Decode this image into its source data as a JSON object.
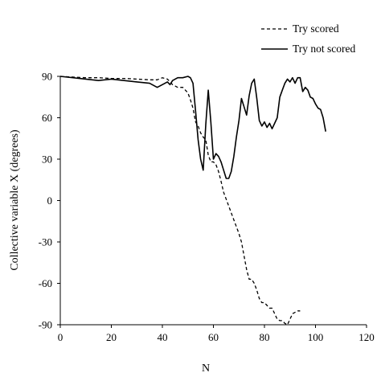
{
  "chart_data": {
    "type": "line",
    "title": "",
    "xlabel": "N",
    "ylabel": "Collective variable X (degrees)",
    "xlim": [
      0,
      120
    ],
    "ylim": [
      -90,
      90
    ],
    "xticks": [
      0,
      20,
      40,
      60,
      80,
      100,
      120
    ],
    "yticks": [
      -90,
      -60,
      -30,
      0,
      30,
      60,
      90
    ],
    "grid": false,
    "legend_position": "top-right",
    "series": [
      {
        "name": "Try scored",
        "style": "dashed",
        "color": "#000000",
        "points": [
          [
            0,
            90
          ],
          [
            5,
            89.5
          ],
          [
            10,
            89
          ],
          [
            15,
            89
          ],
          [
            20,
            88.5
          ],
          [
            25,
            88.5
          ],
          [
            30,
            88
          ],
          [
            35,
            87.5
          ],
          [
            38,
            87.5
          ],
          [
            40,
            89
          ],
          [
            42,
            88
          ],
          [
            44,
            84
          ],
          [
            46,
            82
          ],
          [
            48,
            82
          ],
          [
            50,
            78
          ],
          [
            51,
            73
          ],
          [
            52,
            67
          ],
          [
            53,
            57
          ],
          [
            54,
            54
          ],
          [
            55,
            49
          ],
          [
            56,
            46
          ],
          [
            57,
            44
          ],
          [
            58,
            33
          ],
          [
            59,
            28
          ],
          [
            60,
            28
          ],
          [
            61,
            26
          ],
          [
            62,
            21
          ],
          [
            63,
            14
          ],
          [
            64,
            6
          ],
          [
            65,
            1
          ],
          [
            66,
            -4
          ],
          [
            67,
            -9
          ],
          [
            68,
            -14
          ],
          [
            69,
            -19
          ],
          [
            70,
            -24
          ],
          [
            71,
            -30
          ],
          [
            72,
            -40
          ],
          [
            73,
            -50
          ],
          [
            74,
            -57
          ],
          [
            75,
            -57
          ],
          [
            76,
            -60
          ],
          [
            77,
            -65
          ],
          [
            78,
            -71
          ],
          [
            79,
            -74
          ],
          [
            80,
            -74
          ],
          [
            81,
            -76
          ],
          [
            82,
            -78
          ],
          [
            83,
            -78
          ],
          [
            84,
            -82
          ],
          [
            85,
            -86
          ],
          [
            86,
            -87
          ],
          [
            87,
            -87
          ],
          [
            88,
            -89
          ],
          [
            89,
            -90
          ],
          [
            90,
            -86
          ],
          [
            91,
            -82
          ],
          [
            92,
            -81
          ],
          [
            93,
            -80
          ],
          [
            94,
            -80
          ]
        ]
      },
      {
        "name": "Try not scored",
        "style": "solid",
        "color": "#000000",
        "points": [
          [
            0,
            90
          ],
          [
            5,
            89
          ],
          [
            10,
            88
          ],
          [
            15,
            87
          ],
          [
            20,
            88
          ],
          [
            25,
            87
          ],
          [
            30,
            86
          ],
          [
            35,
            85
          ],
          [
            38,
            82
          ],
          [
            40,
            84
          ],
          [
            42,
            86
          ],
          [
            43,
            84
          ],
          [
            44,
            87
          ],
          [
            46,
            89
          ],
          [
            48,
            89
          ],
          [
            50,
            90
          ],
          [
            51,
            89
          ],
          [
            52,
            85
          ],
          [
            53,
            65
          ],
          [
            54,
            44
          ],
          [
            55,
            30
          ],
          [
            56,
            22
          ],
          [
            57,
            55
          ],
          [
            58,
            80
          ],
          [
            59,
            57
          ],
          [
            60,
            30
          ],
          [
            61,
            34
          ],
          [
            62,
            32
          ],
          [
            63,
            28
          ],
          [
            64,
            22
          ],
          [
            65,
            16
          ],
          [
            66,
            16
          ],
          [
            67,
            21
          ],
          [
            68,
            32
          ],
          [
            69,
            46
          ],
          [
            70,
            58
          ],
          [
            71,
            74
          ],
          [
            72,
            68
          ],
          [
            73,
            62
          ],
          [
            74,
            76
          ],
          [
            75,
            85
          ],
          [
            76,
            88
          ],
          [
            77,
            74
          ],
          [
            78,
            58
          ],
          [
            79,
            54
          ],
          [
            80,
            57
          ],
          [
            81,
            53
          ],
          [
            82,
            56
          ],
          [
            83,
            52
          ],
          [
            84,
            56
          ],
          [
            85,
            60
          ],
          [
            86,
            75
          ],
          [
            87,
            80
          ],
          [
            88,
            85
          ],
          [
            89,
            88
          ],
          [
            90,
            86
          ],
          [
            91,
            89
          ],
          [
            92,
            85
          ],
          [
            93,
            89
          ],
          [
            94,
            89
          ],
          [
            95,
            79
          ],
          [
            96,
            82
          ],
          [
            97,
            80
          ],
          [
            98,
            75
          ],
          [
            99,
            74
          ],
          [
            100,
            70
          ],
          [
            101,
            67
          ],
          [
            102,
            66
          ],
          [
            103,
            60
          ],
          [
            104,
            50
          ]
        ]
      }
    ]
  }
}
